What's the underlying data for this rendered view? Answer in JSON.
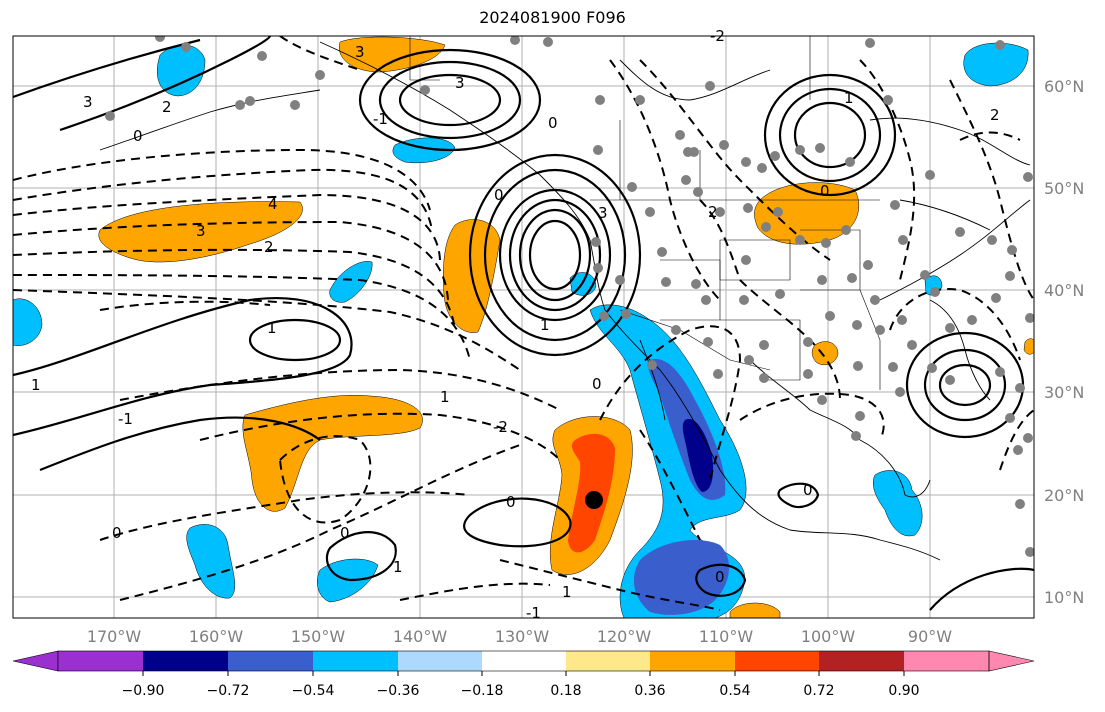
{
  "title": "2024081900 F096",
  "longitude_labels": [
    "170°W",
    "160°W",
    "150°W",
    "140°W",
    "130°W",
    "120°W",
    "110°W",
    "100°W",
    "90°W"
  ],
  "latitude_labels": [
    "60°N",
    "50°N",
    "40°N",
    "30°N",
    "20°N",
    "10°N"
  ],
  "contour_labels": [
    "3",
    "2",
    "0",
    "3",
    "-1",
    "3",
    "4",
    "3",
    "2",
    "0",
    "1",
    "1",
    "0",
    "1",
    "1",
    "-1",
    "0",
    "-2",
    "0",
    "0",
    "0",
    "1",
    "0",
    "1",
    "2",
    "-1",
    "1",
    "0",
    "-2",
    "2",
    "0",
    "3"
  ],
  "colorbar": {
    "ticks": [
      "−0.90",
      "−0.72",
      "−0.54",
      "−0.36",
      "−0.18",
      "0.18",
      "0.36",
      "0.54",
      "0.72",
      "0.90"
    ],
    "colors": [
      "#9b30d0",
      "#00008b",
      "#3a5fcd",
      "#00bfff",
      "#add8ff",
      "#ffffff",
      "#ffe88a",
      "#ffa500",
      "#ff4500",
      "#b22222",
      "#ff88b0"
    ]
  },
  "palette": {
    "orange": "#ffa500",
    "red": "#ff4500",
    "navy": "#00008b",
    "blue": "#3a5fcd",
    "cyan": "#00bfff",
    "lightblue": "#add8ff",
    "station": "#808080"
  }
}
